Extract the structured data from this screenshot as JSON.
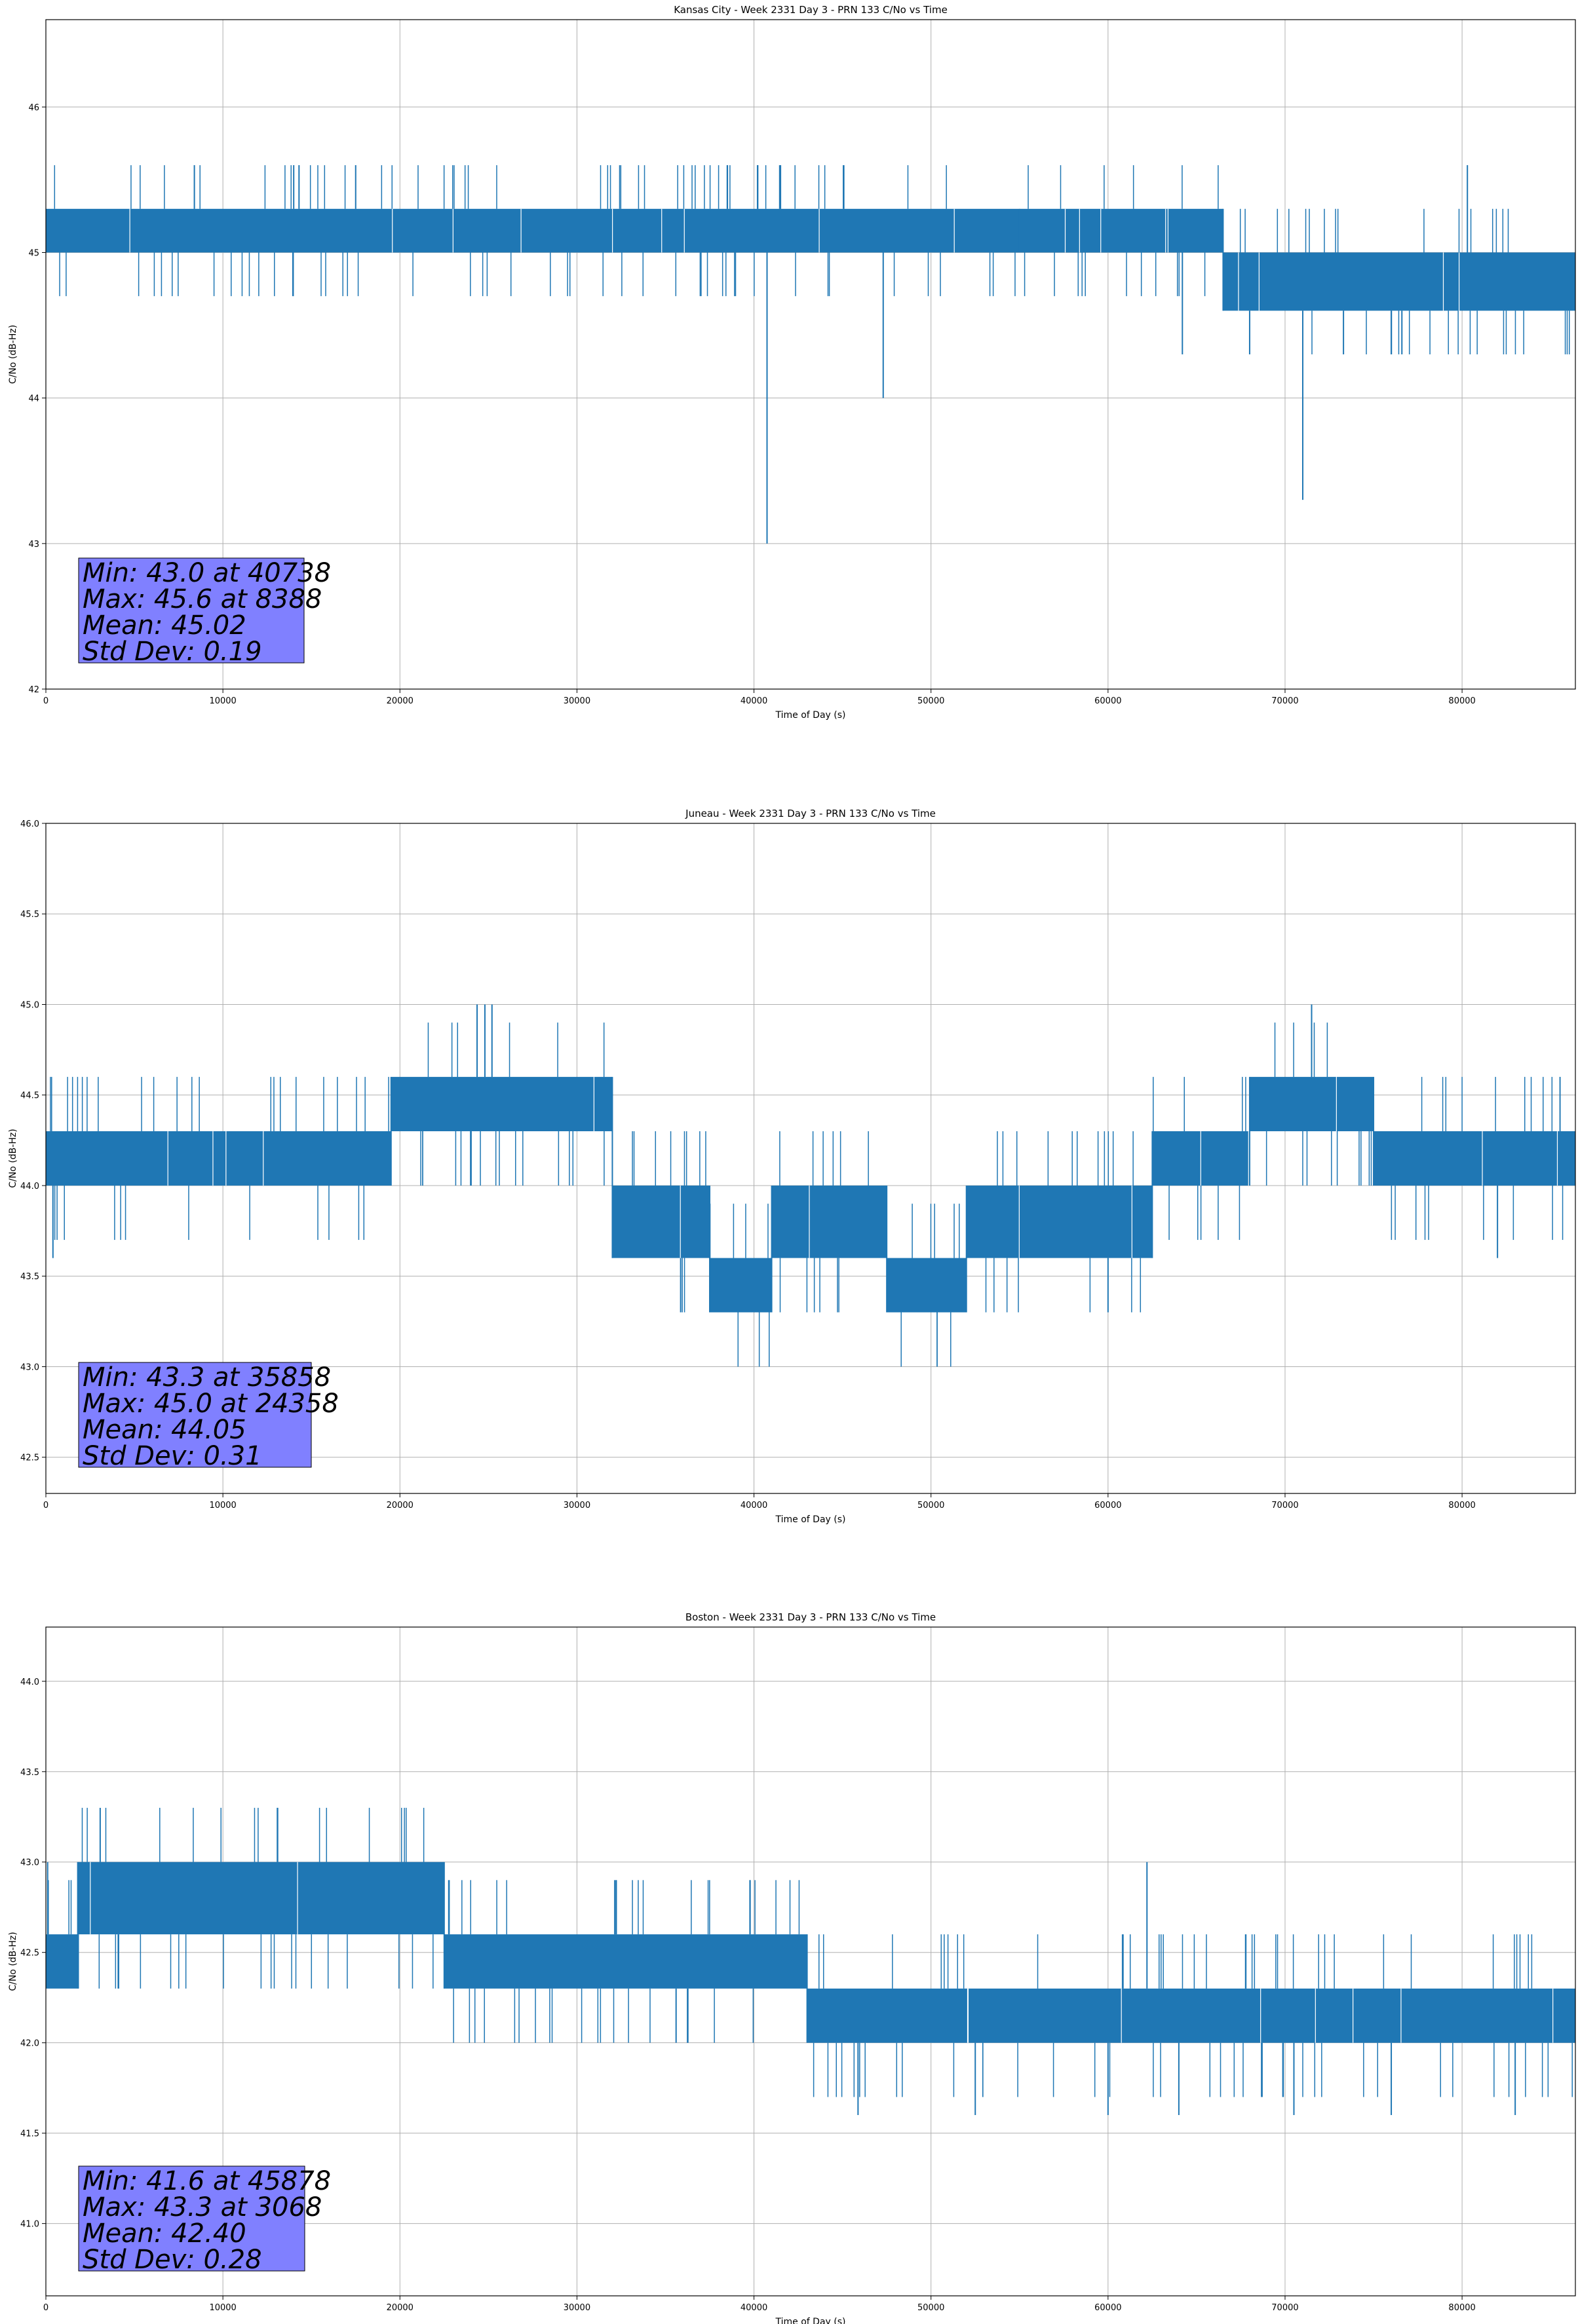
{
  "chart_data": [
    {
      "type": "line",
      "title": "Kansas City - Week 2331 Day 3 - PRN 133 C/No vs Time",
      "xlabel": "Time of Day (s)",
      "ylabel": "C/No (dB-Hz)",
      "xlim": [
        0,
        86400
      ],
      "ylim": [
        42.0,
        46.6
      ],
      "xticks": [
        0,
        10000,
        20000,
        30000,
        40000,
        50000,
        60000,
        70000,
        80000
      ],
      "yticks": [
        "42",
        "43",
        "44",
        "45",
        "46"
      ],
      "yvals": [
        42,
        43,
        44,
        45,
        46
      ],
      "grid": true,
      "color": "#1f77b4",
      "series": [
        {
          "segments": [
            {
              "x": [
                0,
                55000
              ],
              "lo": 45.0,
              "hi": 45.3
            },
            {
              "x": [
                55000,
                66500
              ],
              "lo": 45.0,
              "hi": 45.3
            },
            {
              "x": [
                66500,
                86400
              ],
              "lo": 44.6,
              "hi": 45.0
            }
          ],
          "spikes_up": [
            {
              "x": 8388,
              "y": 45.6
            },
            {
              "x": 14000,
              "y": 45.6
            },
            {
              "x": 14300,
              "y": 45.6
            },
            {
              "x": 17500,
              "y": 45.6
            },
            {
              "x": 40200,
              "y": 45.6
            },
            {
              "x": 41500,
              "y": 45.6
            },
            {
              "x": 80300,
              "y": 45.6
            }
          ],
          "spikes_down": [
            {
              "x": 40738,
              "y": 43.0
            },
            {
              "x": 47300,
              "y": 44.0
            },
            {
              "x": 71000,
              "y": 43.3
            },
            {
              "x": 68000,
              "y": 44.3
            },
            {
              "x": 64200,
              "y": 44.3
            },
            {
              "x": 73300,
              "y": 44.3
            },
            {
              "x": 76600,
              "y": 44.3
            }
          ]
        }
      ],
      "annotation": [
        "Min: 43.0 at 40738",
        "Max: 45.6 at 8388",
        "Mean: 45.02",
        "Std Dev: 0.19"
      ]
    },
    {
      "type": "line",
      "title": "Juneau - Week 2331 Day 3 - PRN 133 C/No vs Time",
      "xlabel": "Time of Day (s)",
      "ylabel": "C/No (dB-Hz)",
      "xlim": [
        0,
        86400
      ],
      "ylim": [
        42.3,
        46.0
      ],
      "xticks": [
        0,
        10000,
        20000,
        30000,
        40000,
        50000,
        60000,
        70000,
        80000
      ],
      "yticks": [
        "42.5",
        "43.0",
        "43.5",
        "44.0",
        "44.5",
        "45.0",
        "45.5",
        "46.0"
      ],
      "yvals": [
        42.5,
        43.0,
        43.5,
        44.0,
        44.5,
        45.0,
        45.5,
        46.0
      ],
      "grid": true,
      "color": "#1f77b4",
      "series": [
        {
          "segments": [
            {
              "x": [
                0,
                19500
              ],
              "lo": 44.0,
              "hi": 44.3
            },
            {
              "x": [
                19500,
                32000
              ],
              "lo": 44.3,
              "hi": 44.6
            },
            {
              "x": [
                32000,
                37500
              ],
              "lo": 43.6,
              "hi": 44.0
            },
            {
              "x": [
                37500,
                41000
              ],
              "lo": 43.3,
              "hi": 43.6
            },
            {
              "x": [
                41000,
                47500
              ],
              "lo": 43.6,
              "hi": 44.0
            },
            {
              "x": [
                47500,
                52000
              ],
              "lo": 43.3,
              "hi": 43.6
            },
            {
              "x": [
                52000,
                62500
              ],
              "lo": 43.6,
              "hi": 44.0
            },
            {
              "x": [
                62500,
                68000
              ],
              "lo": 44.0,
              "hi": 44.3
            },
            {
              "x": [
                68000,
                75000
              ],
              "lo": 44.3,
              "hi": 44.6
            },
            {
              "x": [
                75000,
                86400
              ],
              "lo": 44.0,
              "hi": 44.3
            }
          ],
          "spikes_up": [
            {
              "x": 24358,
              "y": 45.0
            },
            {
              "x": 24800,
              "y": 45.0
            },
            {
              "x": 25200,
              "y": 45.0
            },
            {
              "x": 71500,
              "y": 45.0
            }
          ],
          "spikes_down": [
            {
              "x": 35858,
              "y": 43.3
            },
            {
              "x": 400,
              "y": 43.6
            },
            {
              "x": 60000,
              "y": 43.3
            },
            {
              "x": 82000,
              "y": 43.6
            }
          ]
        }
      ],
      "annotation": [
        "Min: 43.3 at 35858",
        "Max: 45.0 at 24358",
        "Mean: 44.05",
        "Std Dev: 0.31"
      ]
    },
    {
      "type": "line",
      "title": "Boston - Week 2331 Day 3 - PRN 133 C/No vs Time",
      "xlabel": "Time of Day (s)",
      "ylabel": "C/No (dB-Hz)",
      "xlim": [
        0,
        86400
      ],
      "ylim": [
        40.6,
        44.3
      ],
      "xticks": [
        0,
        10000,
        20000,
        30000,
        40000,
        50000,
        60000,
        70000,
        80000
      ],
      "yticks": [
        "41.0",
        "41.5",
        "42.0",
        "42.5",
        "43.0",
        "43.5",
        "44.0"
      ],
      "yvals": [
        41.0,
        41.5,
        42.0,
        42.5,
        43.0,
        43.5,
        44.0
      ],
      "grid": true,
      "color": "#1f77b4",
      "series": [
        {
          "segments": [
            {
              "x": [
                0,
                1800
              ],
              "lo": 42.3,
              "hi": 42.6
            },
            {
              "x": [
                1800,
                22500
              ],
              "lo": 42.6,
              "hi": 43.0
            },
            {
              "x": [
                22500,
                43000
              ],
              "lo": 42.3,
              "hi": 42.6
            },
            {
              "x": [
                43000,
                86400
              ],
              "lo": 42.0,
              "hi": 42.3
            }
          ],
          "spikes_up": [
            {
              "x": 3068,
              "y": 43.3
            },
            {
              "x": 62200,
              "y": 43.0
            },
            {
              "x": 100,
              "y": 43.0
            }
          ],
          "spikes_down": [
            {
              "x": 45878,
              "y": 41.6
            },
            {
              "x": 35600,
              "y": 42.0
            },
            {
              "x": 52500,
              "y": 41.6
            },
            {
              "x": 60000,
              "y": 41.6
            },
            {
              "x": 64000,
              "y": 41.6
            },
            {
              "x": 70500,
              "y": 41.6
            },
            {
              "x": 76000,
              "y": 41.6
            },
            {
              "x": 83000,
              "y": 41.6
            }
          ]
        }
      ],
      "annotation": [
        "Min: 41.6 at 45878",
        "Max: 43.3 at 3068",
        "Mean: 42.40",
        "Std Dev: 0.28"
      ]
    }
  ]
}
